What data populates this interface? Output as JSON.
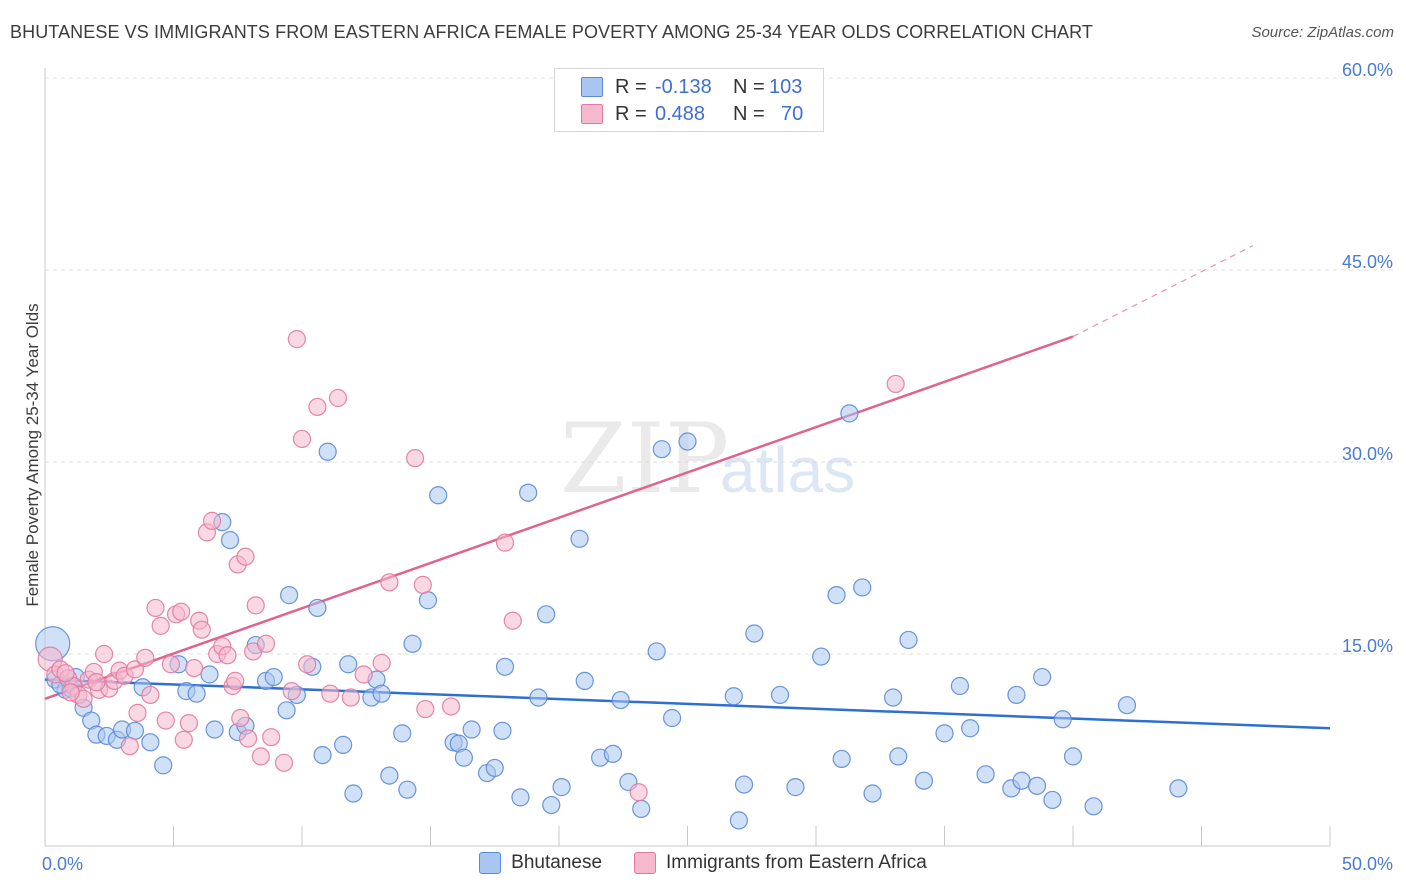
{
  "title": "BHUTANESE VS IMMIGRANTS FROM EASTERN AFRICA FEMALE POVERTY AMONG 25-34 YEAR OLDS CORRELATION CHART",
  "source": "Source: ZipAtlas.com",
  "watermark": {
    "zip": "ZIP",
    "atlas": "atlas"
  },
  "legend": {
    "rows": [
      {
        "r_label": "R =",
        "r_value": "-0.138",
        "n_label": "N =",
        "n_value": "103",
        "color": "#a9c6f0",
        "edge": "#5b8ad6"
      },
      {
        "r_label": "R =",
        "r_value": "0.488",
        "n_label": "N =",
        "n_value": "70",
        "color": "#f6b8cc",
        "edge": "#e07aa0"
      }
    ]
  },
  "chart_data": {
    "type": "scatter",
    "title": "BHUTANESE VS IMMIGRANTS FROM EASTERN AFRICA FEMALE POVERTY AMONG 25-34 YEAR OLDS CORRELATION CHART",
    "xlabel": "",
    "ylabel": "Female Poverty Among 25-34 Year Olds",
    "xlim": [
      0,
      50
    ],
    "ylim": [
      0,
      60
    ],
    "x_tick_labels": [
      "0.0%",
      "50.0%"
    ],
    "y_tick_labels": [
      "15.0%",
      "30.0%",
      "45.0%",
      "60.0%"
    ],
    "y_ticks": [
      15,
      30,
      45,
      60
    ],
    "grid": true,
    "legend_position": "top-center",
    "series": [
      {
        "name": "Bhutanese",
        "color": "#a9c6f0",
        "edge": "#5b8ad6",
        "trend_color": "#2e6fd0",
        "trend": [
          [
            0,
            13.0
          ],
          [
            50,
            9.2
          ]
        ],
        "points": [
          [
            0.3,
            15.8
          ],
          [
            0.4,
            13.0
          ],
          [
            0.8,
            12.2
          ],
          [
            1.0,
            12.3
          ],
          [
            1.2,
            13.2
          ],
          [
            1.5,
            10.8
          ],
          [
            1.8,
            9.8
          ],
          [
            2.0,
            8.7
          ],
          [
            2.4,
            8.6
          ],
          [
            2.8,
            8.3
          ],
          [
            3.0,
            9.1
          ],
          [
            3.5,
            9.0
          ],
          [
            3.8,
            12.4
          ],
          [
            4.1,
            8.1
          ],
          [
            4.6,
            6.3
          ],
          [
            5.2,
            14.2
          ],
          [
            5.5,
            12.1
          ],
          [
            5.9,
            11.9
          ],
          [
            6.4,
            13.4
          ],
          [
            6.6,
            9.1
          ],
          [
            6.9,
            25.3
          ],
          [
            7.2,
            23.9
          ],
          [
            7.5,
            8.9
          ],
          [
            7.8,
            9.4
          ],
          [
            8.2,
            15.7
          ],
          [
            8.6,
            12.9
          ],
          [
            8.9,
            13.2
          ],
          [
            9.4,
            10.6
          ],
          [
            9.5,
            19.6
          ],
          [
            9.8,
            11.8
          ],
          [
            10.4,
            14.0
          ],
          [
            10.6,
            18.6
          ],
          [
            10.8,
            7.1
          ],
          [
            11.0,
            30.8
          ],
          [
            11.6,
            7.9
          ],
          [
            11.8,
            14.2
          ],
          [
            12.0,
            4.1
          ],
          [
            12.7,
            11.6
          ],
          [
            12.9,
            13.0
          ],
          [
            13.1,
            11.9
          ],
          [
            13.4,
            5.5
          ],
          [
            13.9,
            8.8
          ],
          [
            14.1,
            4.4
          ],
          [
            14.3,
            15.8
          ],
          [
            14.9,
            19.2
          ],
          [
            15.3,
            27.4
          ],
          [
            15.9,
            8.1
          ],
          [
            16.1,
            8.0
          ],
          [
            16.3,
            6.9
          ],
          [
            16.6,
            9.1
          ],
          [
            17.2,
            5.7
          ],
          [
            17.5,
            6.1
          ],
          [
            17.8,
            9.0
          ],
          [
            17.9,
            14.0
          ],
          [
            18.5,
            3.8
          ],
          [
            18.8,
            27.6
          ],
          [
            19.2,
            11.6
          ],
          [
            19.5,
            18.1
          ],
          [
            19.7,
            3.2
          ],
          [
            20.1,
            4.6
          ],
          [
            20.8,
            24.0
          ],
          [
            21.0,
            12.9
          ],
          [
            21.6,
            6.9
          ],
          [
            22.1,
            7.2
          ],
          [
            22.4,
            11.4
          ],
          [
            22.7,
            5.0
          ],
          [
            23.2,
            2.9
          ],
          [
            23.8,
            15.2
          ],
          [
            24.0,
            31.0
          ],
          [
            24.4,
            10.0
          ],
          [
            25.0,
            31.6
          ],
          [
            26.8,
            11.7
          ],
          [
            27.0,
            2.0
          ],
          [
            27.2,
            4.8
          ],
          [
            27.6,
            16.6
          ],
          [
            28.6,
            11.8
          ],
          [
            29.2,
            4.6
          ],
          [
            30.2,
            14.8
          ],
          [
            30.8,
            19.6
          ],
          [
            31.0,
            6.8
          ],
          [
            31.3,
            33.8
          ],
          [
            31.8,
            20.2
          ],
          [
            32.2,
            4.1
          ],
          [
            33.0,
            11.6
          ],
          [
            33.2,
            7.0
          ],
          [
            33.6,
            16.1
          ],
          [
            34.2,
            5.1
          ],
          [
            35.0,
            8.8
          ],
          [
            35.6,
            12.5
          ],
          [
            36.0,
            9.2
          ],
          [
            36.6,
            5.6
          ],
          [
            37.6,
            4.5
          ],
          [
            37.8,
            11.8
          ],
          [
            38.0,
            5.1
          ],
          [
            38.6,
            4.7
          ],
          [
            38.8,
            13.2
          ],
          [
            39.2,
            3.6
          ],
          [
            39.6,
            9.9
          ],
          [
            40.0,
            7.0
          ],
          [
            40.8,
            3.1
          ],
          [
            42.1,
            11.0
          ],
          [
            44.1,
            4.5
          ],
          [
            0.6,
            12.6
          ]
        ]
      },
      {
        "name": "Immigrants from Eastern Africa",
        "color": "#f6b8cc",
        "edge": "#e07aa0",
        "trend_color": "#e0628f",
        "trend": [
          [
            0,
            11.5
          ],
          [
            40,
            39.8
          ]
        ],
        "trend_dashed": [
          [
            40,
            39.8
          ],
          [
            47,
            46.9
          ]
        ],
        "points": [
          [
            0.2,
            14.6
          ],
          [
            0.4,
            13.4
          ],
          [
            0.6,
            13.8
          ],
          [
            0.9,
            13.1
          ],
          [
            1.1,
            12.5
          ],
          [
            1.3,
            11.8
          ],
          [
            1.5,
            11.5
          ],
          [
            1.7,
            13.0
          ],
          [
            1.9,
            13.6
          ],
          [
            2.1,
            12.2
          ],
          [
            2.3,
            15.0
          ],
          [
            2.5,
            12.3
          ],
          [
            2.7,
            12.9
          ],
          [
            2.9,
            13.7
          ],
          [
            3.1,
            13.3
          ],
          [
            3.3,
            7.8
          ],
          [
            3.5,
            13.8
          ],
          [
            3.6,
            10.4
          ],
          [
            3.9,
            14.7
          ],
          [
            4.1,
            11.8
          ],
          [
            4.3,
            18.6
          ],
          [
            4.5,
            17.2
          ],
          [
            4.7,
            9.8
          ],
          [
            4.9,
            14.2
          ],
          [
            5.1,
            18.1
          ],
          [
            5.3,
            18.3
          ],
          [
            5.4,
            8.3
          ],
          [
            5.6,
            9.6
          ],
          [
            5.8,
            13.9
          ],
          [
            6.0,
            17.6
          ],
          [
            6.1,
            16.9
          ],
          [
            6.3,
            24.5
          ],
          [
            6.5,
            25.4
          ],
          [
            6.7,
            15.0
          ],
          [
            6.9,
            15.6
          ],
          [
            7.1,
            14.9
          ],
          [
            7.3,
            12.5
          ],
          [
            7.4,
            12.9
          ],
          [
            7.5,
            22.0
          ],
          [
            7.6,
            10.0
          ],
          [
            7.8,
            22.6
          ],
          [
            7.9,
            8.4
          ],
          [
            8.1,
            15.2
          ],
          [
            8.2,
            18.8
          ],
          [
            8.4,
            7.0
          ],
          [
            8.6,
            15.8
          ],
          [
            8.8,
            8.5
          ],
          [
            9.3,
            6.5
          ],
          [
            9.6,
            12.1
          ],
          [
            9.8,
            39.6
          ],
          [
            10.0,
            31.8
          ],
          [
            10.2,
            14.2
          ],
          [
            10.6,
            34.3
          ],
          [
            11.1,
            11.9
          ],
          [
            11.4,
            35.0
          ],
          [
            11.9,
            11.6
          ],
          [
            12.4,
            13.4
          ],
          [
            13.1,
            14.3
          ],
          [
            13.4,
            20.6
          ],
          [
            14.4,
            30.3
          ],
          [
            14.7,
            20.4
          ],
          [
            14.8,
            10.7
          ],
          [
            15.8,
            10.9
          ],
          [
            17.9,
            23.7
          ],
          [
            18.2,
            17.6
          ],
          [
            23.1,
            4.2
          ],
          [
            33.1,
            36.1
          ],
          [
            0.8,
            13.5
          ],
          [
            1.0,
            12.0
          ],
          [
            2.0,
            12.8
          ]
        ]
      }
    ]
  }
}
